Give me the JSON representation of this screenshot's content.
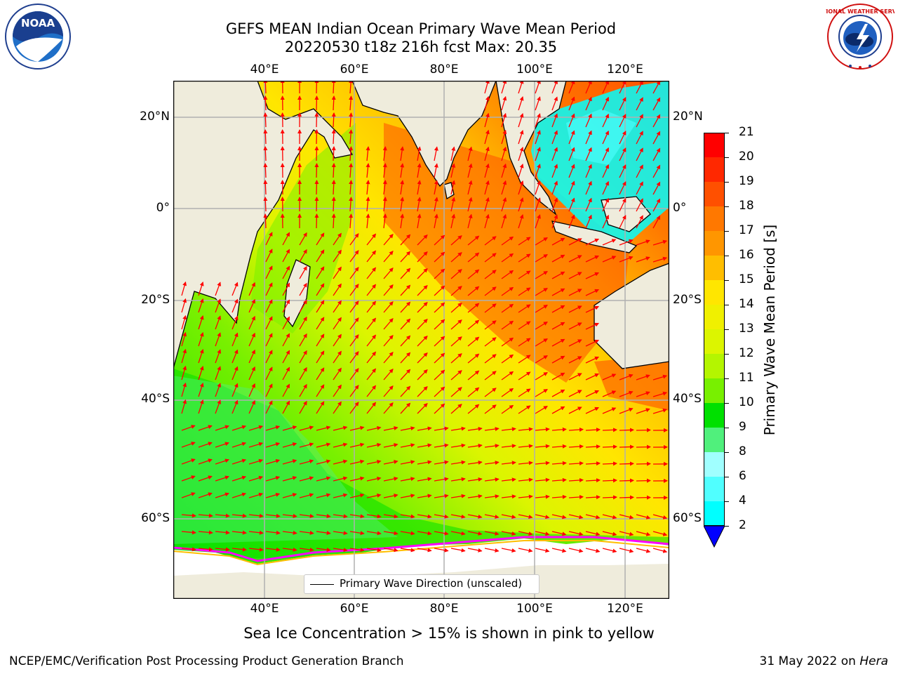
{
  "title": {
    "line1": "GEFS MEAN Indian Ocean Primary Wave Mean Period",
    "line2": "20220530 t18z 216h fcst   Max: 20.35"
  },
  "logos": {
    "left": {
      "name": "noaa-logo",
      "text": "NOAA"
    },
    "right": {
      "name": "nws-logo",
      "text": "NATIONAL WEATHER SERVICE"
    }
  },
  "map": {
    "lon_ticks": [
      "40°E",
      "60°E",
      "80°E",
      "100°E",
      "120°E"
    ],
    "lat_ticks": [
      "20°N",
      "0°",
      "20°S",
      "40°S",
      "60°S"
    ],
    "legend": "Primary Wave Direction (unscaled)",
    "land_color": "#efecdc",
    "arrow_color": "#ff0000",
    "grid_color": "#b0b0b0"
  },
  "colorbar": {
    "label": "Primary Wave Mean Period [s]",
    "ticks": [
      "21",
      "20",
      "19",
      "18",
      "17",
      "16",
      "15",
      "14",
      "13",
      "12",
      "11",
      "10",
      "9",
      "8",
      "6",
      "4",
      "2"
    ],
    "colors": [
      "#ff0000",
      "#ff2800",
      "#ff5000",
      "#ff7800",
      "#ff9600",
      "#ffbe00",
      "#ffe600",
      "#f0f000",
      "#dcf500",
      "#b4f500",
      "#78f000",
      "#00e000",
      "#50f07c",
      "#a0ffff",
      "#50ffff",
      "#00ffff",
      "#0078ff"
    ],
    "under_color": "#0000ff"
  },
  "notes": {
    "sea_ice": "Sea Ice Concentration > 15% is shown in pink to yellow",
    "footer_left": "NCEP/EMC/Verification Post Processing Product Generation Branch",
    "footer_date": "31 May 2022 on ",
    "footer_machine": "Hera"
  }
}
